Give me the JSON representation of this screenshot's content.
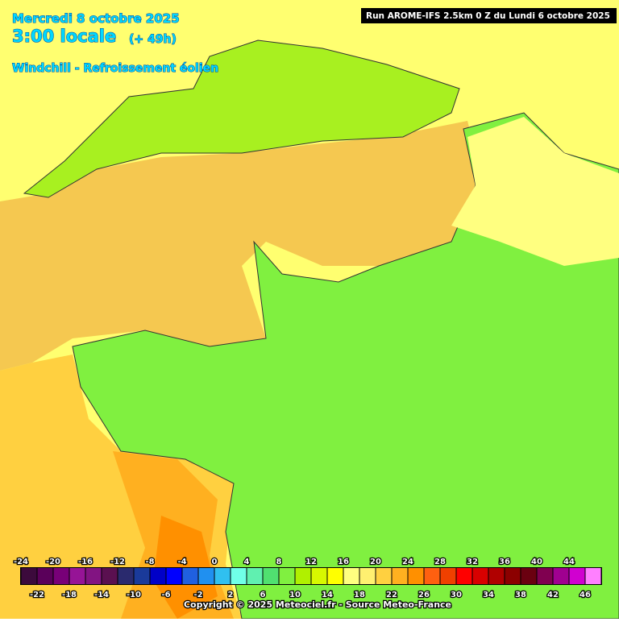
{
  "header": {
    "date": "Mercredi 8 octobre 2025",
    "time": "3:00 locale",
    "lead": "(+ 49h)",
    "parameter": "Windchill - Refroissement éolien",
    "run": "Run AROME-IFS 2.5km 0 Z du Lundi 6 octobre 2025"
  },
  "legend": {
    "values": [
      -24,
      -22,
      -20,
      -18,
      -16,
      -14,
      -12,
      -10,
      -8,
      -6,
      -4,
      -2,
      0,
      2,
      4,
      6,
      8,
      10,
      12,
      14,
      16,
      18,
      20,
      22,
      24,
      26,
      28,
      30,
      32,
      34,
      36,
      38,
      40,
      42,
      44,
      46
    ],
    "colors": [
      "#3c0a3c",
      "#5a005a",
      "#780078",
      "#961496",
      "#821482",
      "#5a1050",
      "#2a2a6e",
      "#1a3a9a",
      "#0000c8",
      "#0000ff",
      "#2060e0",
      "#2090f0",
      "#30c0f0",
      "#70ffe8",
      "#60f0b0",
      "#50e070",
      "#80f040",
      "#b0f000",
      "#d8f800",
      "#ffff00",
      "#ffff80",
      "#fff070",
      "#ffd040",
      "#ffb020",
      "#ff9000",
      "#ff6010",
      "#f04000",
      "#ff0000",
      "#d80000",
      "#b00000",
      "#8c0000",
      "#6a0010",
      "#800050",
      "#a00090",
      "#d000d0",
      "#ff80ff"
    ]
  },
  "footer": {
    "copyright": "Copyright © 2025 Meteociel.fr - Source Meteo-France"
  }
}
